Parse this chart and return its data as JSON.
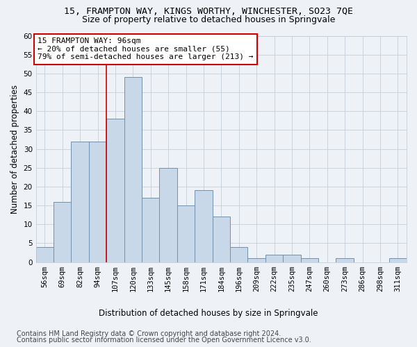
{
  "title": "15, FRAMPTON WAY, KINGS WORTHY, WINCHESTER, SO23 7QE",
  "subtitle": "Size of property relative to detached houses in Springvale",
  "xlabel": "Distribution of detached houses by size in Springvale",
  "ylabel": "Number of detached properties",
  "categories": [
    "56sqm",
    "69sqm",
    "82sqm",
    "94sqm",
    "107sqm",
    "120sqm",
    "133sqm",
    "145sqm",
    "158sqm",
    "171sqm",
    "184sqm",
    "196sqm",
    "209sqm",
    "222sqm",
    "235sqm",
    "247sqm",
    "260sqm",
    "273sqm",
    "286sqm",
    "298sqm",
    "311sqm"
  ],
  "values": [
    4,
    16,
    32,
    32,
    38,
    49,
    17,
    25,
    15,
    19,
    12,
    4,
    1,
    2,
    2,
    1,
    0,
    1,
    0,
    0,
    1
  ],
  "bar_color": "#c8d8e8",
  "bar_edge_color": "#7090b0",
  "annotation_text": "15 FRAMPTON WAY: 96sqm\n← 20% of detached houses are smaller (55)\n79% of semi-detached houses are larger (213) →",
  "annotation_box_color": "#ffffff",
  "annotation_box_edge_color": "#cc0000",
  "vline_x": 3.5,
  "ylim": [
    0,
    60
  ],
  "yticks": [
    0,
    5,
    10,
    15,
    20,
    25,
    30,
    35,
    40,
    45,
    50,
    55,
    60
  ],
  "footer1": "Contains HM Land Registry data © Crown copyright and database right 2024.",
  "footer2": "Contains public sector information licensed under the Open Government Licence v3.0.",
  "background_color": "#eef2f7",
  "grid_color": "#c5cdd8",
  "title_fontsize": 9.5,
  "subtitle_fontsize": 9,
  "axis_label_fontsize": 8.5,
  "tick_fontsize": 7.5,
  "footer_fontsize": 7,
  "annotation_fontsize": 8
}
